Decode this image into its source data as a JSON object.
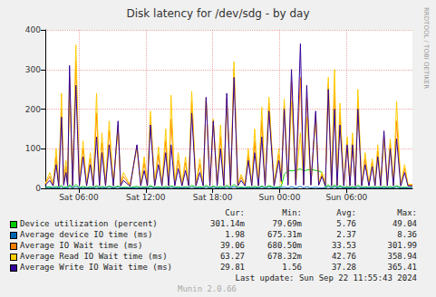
{
  "chart_data": {
    "type": "line",
    "title": "Disk latency for /dev/sdg - by day",
    "side_text": "RRDTOOL / TOBI OETIKER",
    "grid": true,
    "xlim": [
      3,
      35.9
    ],
    "xticks": [
      {
        "value": 6,
        "label": "Sat 06:00"
      },
      {
        "value": 12,
        "label": "Sat 12:00"
      },
      {
        "value": 18,
        "label": "Sat 18:00"
      },
      {
        "value": 24,
        "label": "Sun 00:00"
      },
      {
        "value": 30,
        "label": "Sun 06:00"
      }
    ],
    "ylim": [
      0,
      400
    ],
    "yticks": [
      0,
      100,
      200,
      300,
      400
    ],
    "stats_columns": [
      "Cur:",
      "Min:",
      "Avg:",
      "Max:"
    ],
    "last_update": "Last update: Sun Sep 22 11:55:43 2024",
    "footer": "Munin 2.0.66",
    "x": [
      3.0,
      3.4,
      3.7,
      3.97,
      4.2,
      4.45,
      4.65,
      4.85,
      5.0,
      5.17,
      5.45,
      5.74,
      6.05,
      6.38,
      6.7,
      7.03,
      7.3,
      7.59,
      7.85,
      8.07,
      8.4,
      8.72,
      9.1,
      9.52,
      9.75,
      10.0,
      10.6,
      11.21,
      11.55,
      11.86,
      12.15,
      12.42,
      12.8,
      13.14,
      13.45,
      13.79,
      14.05,
      14.27,
      14.6,
      14.91,
      15.25,
      15.56,
      15.85,
      16.12,
      16.5,
      16.85,
      17.15,
      17.41,
      17.75,
      18.05,
      18.4,
      18.7,
      19.0,
      19.26,
      19.6,
      19.91,
      20.25,
      20.55,
      20.9,
      21.19,
      21.5,
      21.76,
      22.1,
      22.4,
      22.7,
      23.04,
      23.5,
      23.93,
      24.15,
      24.41,
      24.75,
      25.06,
      25.45,
      25.86,
      26.15,
      26.43,
      26.8,
      27.23,
      27.5,
      27.79,
      28.1,
      28.36,
      28.65,
      28.92,
      29.15,
      29.4,
      29.75,
      30.05,
      30.3,
      30.53,
      30.78,
      31.01,
      31.35,
      31.66,
      32.0,
      32.3,
      32.55,
      32.79,
      33.05,
      33.35,
      33.65,
      33.91,
      34.2,
      34.48,
      34.85,
      35.2,
      35.5,
      35.9
    ],
    "series": [
      {
        "name": "Device utilization (percent)",
        "color": "#00cc00",
        "stats": [
          "301.14m",
          "79.69m",
          "5.76",
          "49.04"
        ],
        "values": [
          3,
          4,
          2,
          5,
          2,
          8,
          2,
          4,
          2,
          9,
          2,
          10,
          2,
          5,
          2,
          4,
          2,
          7,
          2,
          5,
          2,
          6,
          2,
          6,
          2,
          3,
          2,
          5,
          2,
          4,
          2,
          7,
          2,
          4,
          2,
          5,
          2,
          7,
          2,
          4,
          2,
          4,
          2,
          8,
          2,
          4,
          2,
          8,
          2,
          6,
          2,
          5,
          2,
          8,
          2,
          10,
          2,
          3,
          2,
          4,
          2,
          5,
          2,
          6,
          2,
          7,
          2,
          4,
          5,
          35,
          45,
          44,
          46,
          49,
          44,
          46,
          48,
          45,
          44,
          40,
          3,
          9,
          2,
          9,
          2,
          7,
          2,
          5,
          2,
          5,
          2,
          8,
          2,
          4,
          2,
          4,
          2,
          4,
          2,
          5,
          2,
          5,
          2,
          7,
          2,
          3,
          2,
          2
        ]
      },
      {
        "name": "Average device IO time (ms)",
        "color": "#0066b3",
        "stats": [
          "1.98",
          "675.31m",
          "2.37",
          "8.36"
        ],
        "values": [
          2,
          2,
          1,
          2,
          1,
          3,
          1,
          2,
          1,
          4,
          1,
          4,
          1,
          2,
          1,
          2,
          1,
          3,
          1,
          2,
          1,
          3,
          1,
          3,
          1,
          1,
          1,
          2,
          1,
          2,
          1,
          3,
          1,
          2,
          1,
          2,
          1,
          3,
          1,
          2,
          1,
          2,
          1,
          3,
          1,
          2,
          1,
          3,
          1,
          3,
          1,
          2,
          1,
          3,
          1,
          4,
          1,
          1,
          1,
          2,
          1,
          2,
          1,
          3,
          1,
          3,
          1,
          2,
          2,
          3,
          1,
          4,
          1,
          5,
          1,
          4,
          1,
          3,
          1,
          1,
          1,
          4,
          1,
          4,
          1,
          3,
          1,
          2,
          1,
          2,
          1,
          3,
          1,
          2,
          1,
          2,
          1,
          2,
          1,
          2,
          1,
          2,
          1,
          3,
          1,
          1,
          1,
          1
        ]
      },
      {
        "name": "Average IO Wait time (ms)",
        "color": "#ff8000",
        "stats": [
          "39.06",
          "680.50m",
          "33.53",
          "301.99"
        ],
        "values": [
          10,
          30,
          8,
          80,
          6,
          200,
          10,
          55,
          8,
          280,
          8,
          320,
          8,
          100,
          8,
          75,
          8,
          190,
          8,
          115,
          8,
          145,
          8,
          160,
          8,
          30,
          6,
          108,
          8,
          65,
          8,
          180,
          8,
          85,
          8,
          120,
          8,
          175,
          8,
          70,
          8,
          65,
          8,
          220,
          8,
          60,
          8,
          228,
          8,
          172,
          8,
          130,
          8,
          228,
          8,
          302,
          8,
          28,
          8,
          85,
          8,
          120,
          8,
          170,
          8,
          215,
          8,
          85,
          15,
          212,
          10,
          270,
          10,
          280,
          10,
          230,
          10,
          188,
          10,
          35,
          8,
          265,
          8,
          260,
          8,
          190,
          8,
          120,
          8,
          125,
          8,
          225,
          8,
          75,
          8,
          65,
          8,
          95,
          8,
          130,
          8,
          115,
          8,
          170,
          8,
          50,
          8,
          8
        ]
      },
      {
        "name": "Average Read IO Wait time (ms)",
        "color": "#ffcc00",
        "stats": [
          "63.27",
          "678.32m",
          "42.76",
          "358.94"
        ],
        "values": [
          12,
          40,
          10,
          100,
          8,
          240,
          12,
          70,
          10,
          250,
          10,
          362,
          10,
          120,
          10,
          90,
          10,
          240,
          10,
          140,
          10,
          170,
          10,
          155,
          10,
          40,
          8,
          105,
          10,
          80,
          10,
          195,
          10,
          105,
          10,
          150,
          10,
          235,
          10,
          90,
          10,
          80,
          10,
          245,
          10,
          75,
          10,
          225,
          10,
          175,
          10,
          160,
          10,
          215,
          10,
          320,
          10,
          35,
          10,
          100,
          10,
          150,
          10,
          205,
          10,
          230,
          10,
          100,
          12,
          225,
          12,
          220,
          12,
          140,
          12,
          180,
          12,
          180,
          12,
          40,
          10,
          280,
          10,
          300,
          10,
          215,
          10,
          130,
          10,
          140,
          10,
          250,
          10,
          90,
          10,
          75,
          10,
          110,
          10,
          120,
          10,
          125,
          10,
          220,
          10,
          60,
          10,
          10
        ]
      },
      {
        "name": "Average Write IO Wait time (ms)",
        "color": "#330099",
        "stats": [
          "29.81",
          "1.56",
          "37.28",
          "365.41"
        ],
        "values": [
          8,
          20,
          6,
          60,
          5,
          180,
          8,
          40,
          6,
          310,
          6,
          260,
          6,
          80,
          6,
          60,
          6,
          130,
          6,
          90,
          6,
          110,
          6,
          170,
          6,
          20,
          5,
          110,
          6,
          45,
          6,
          160,
          6,
          60,
          6,
          90,
          6,
          110,
          6,
          50,
          6,
          45,
          6,
          190,
          6,
          40,
          6,
          230,
          6,
          170,
          6,
          100,
          6,
          240,
          6,
          280,
          6,
          20,
          6,
          70,
          6,
          90,
          6,
          130,
          6,
          195,
          6,
          70,
          18,
          200,
          8,
          300,
          8,
          365,
          8,
          260,
          8,
          195,
          8,
          30,
          6,
          250,
          6,
          200,
          6,
          160,
          6,
          110,
          6,
          110,
          6,
          200,
          6,
          60,
          6,
          55,
          6,
          80,
          6,
          145,
          6,
          100,
          6,
          125,
          6,
          40,
          6,
          6
        ]
      }
    ]
  }
}
